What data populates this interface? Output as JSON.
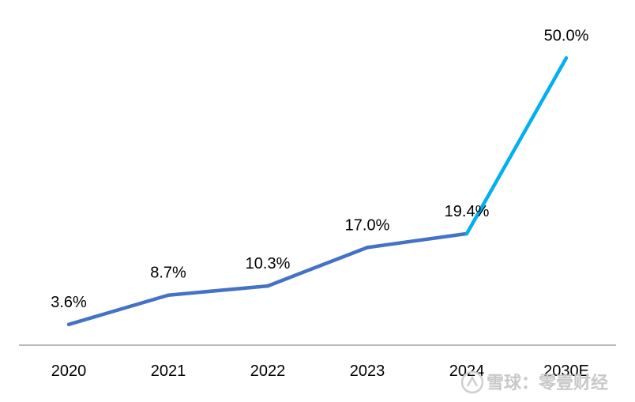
{
  "chart_data": {
    "type": "line",
    "categories": [
      "2020",
      "2021",
      "2022",
      "2023",
      "2024",
      "2030E"
    ],
    "values": [
      3.6,
      8.7,
      10.3,
      17.0,
      19.4,
      50.0
    ],
    "data_labels": [
      "3.6%",
      "8.7%",
      "10.3%",
      "17.0%",
      "19.4%",
      "50.0%"
    ],
    "title": "",
    "xlabel": "",
    "ylabel": "",
    "ylim": [
      0,
      55
    ],
    "grid": false,
    "legend": "none",
    "colors": {
      "actual": "#4472C4",
      "forecast": "#00B0F0",
      "axis": "#A6A6A6"
    }
  },
  "watermark": {
    "icon": "snowball-logo-icon",
    "text": "雪球：零壹财经"
  }
}
